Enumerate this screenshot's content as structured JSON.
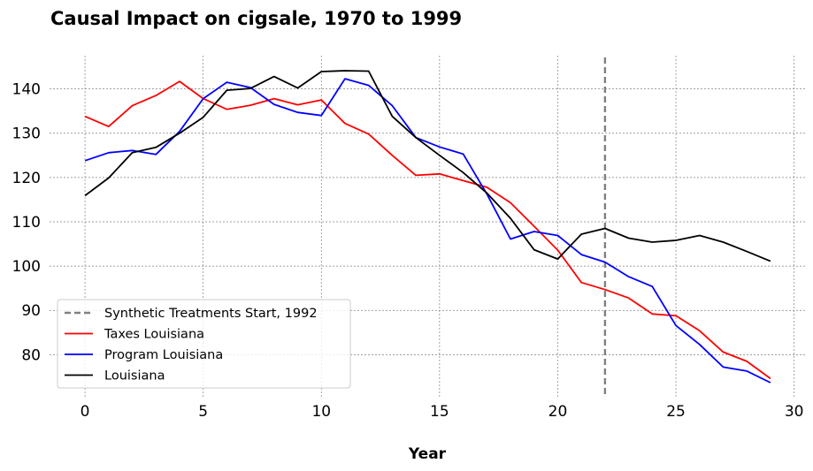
{
  "chart_data": {
    "type": "line",
    "title": "Causal Impact on cigsale, 1970 to 1999",
    "xlabel": "Year",
    "ylabel": "",
    "xlim": [
      -1.5,
      30.5
    ],
    "ylim": [
      70.5,
      147.5
    ],
    "xticks": [
      0,
      5,
      10,
      15,
      20,
      25,
      30
    ],
    "yticks": [
      80,
      90,
      100,
      110,
      120,
      130,
      140
    ],
    "grid": true,
    "legend_position": "lower-left",
    "vertical_line": {
      "x": 22,
      "label": "Synthetic Treatments Start, 1992",
      "color": "#808080",
      "style": "dashed"
    },
    "x": [
      0,
      1,
      2,
      3,
      4,
      5,
      6,
      7,
      8,
      9,
      10,
      11,
      12,
      13,
      14,
      15,
      16,
      17,
      18,
      19,
      20,
      21,
      22,
      23,
      24,
      25,
      26,
      27,
      28,
      29
    ],
    "series": [
      {
        "name": "Taxes Louisiana",
        "color": "#ff0000",
        "values": [
          133.8,
          131.5,
          136.2,
          138.5,
          141.7,
          137.8,
          135.4,
          136.3,
          137.8,
          136.4,
          137.5,
          132.2,
          129.8,
          125.0,
          120.5,
          120.8,
          119.3,
          117.8,
          114.3,
          109.0,
          103.6,
          96.3,
          94.7,
          92.8,
          89.2,
          88.8,
          85.4,
          80.6,
          78.5,
          74.6
        ]
      },
      {
        "name": "Program Louisiana",
        "color": "#0000ff",
        "values": [
          123.8,
          125.6,
          126.1,
          125.2,
          130.4,
          137.8,
          141.5,
          140.3,
          136.5,
          134.7,
          134.0,
          142.3,
          140.8,
          136.2,
          129.0,
          126.9,
          125.3,
          116.3,
          106.1,
          107.8,
          106.9,
          102.6,
          100.9,
          97.6,
          95.4,
          86.6,
          82.3,
          77.2,
          76.3,
          73.7
        ]
      },
      {
        "name": "Louisiana",
        "color": "#000000",
        "values": [
          115.9,
          119.9,
          125.6,
          126.8,
          130.0,
          133.6,
          139.7,
          140.1,
          142.8,
          140.2,
          143.9,
          144.1,
          144.0,
          133.8,
          129.0,
          125.0,
          121.1,
          116.5,
          110.8,
          103.7,
          101.6,
          107.2,
          108.5,
          106.3,
          105.4,
          105.8,
          106.9,
          105.4,
          103.3,
          101.1
        ]
      }
    ]
  }
}
